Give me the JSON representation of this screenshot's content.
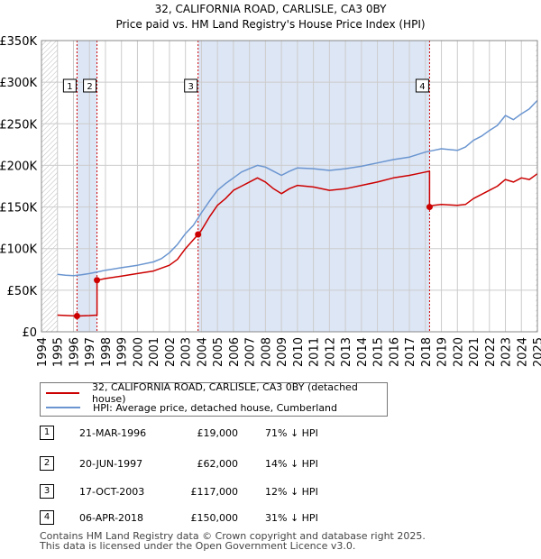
{
  "chart_data": {
    "type": "line",
    "title": "32, CALIFORNIA ROAD, CARLISLE, CA3 0BY",
    "subtitle": "Price paid vs. HM Land Registry's House Price Index (HPI)",
    "xlim": [
      1994,
      2025
    ],
    "ylim": [
      0,
      350000
    ],
    "y_ticks": [
      {
        "value": 0,
        "label": "£0"
      },
      {
        "value": 50000,
        "label": "£50K"
      },
      {
        "value": 100000,
        "label": "£100K"
      },
      {
        "value": 150000,
        "label": "£150K"
      },
      {
        "value": 200000,
        "label": "£200K"
      },
      {
        "value": 250000,
        "label": "£250K"
      },
      {
        "value": 300000,
        "label": "£300K"
      },
      {
        "value": 350000,
        "label": "£350K"
      }
    ],
    "x_ticks": [
      "1994",
      "1995",
      "1996",
      "1997",
      "1998",
      "1999",
      "2000",
      "2001",
      "2002",
      "2003",
      "2004",
      "2005",
      "2006",
      "2007",
      "2008",
      "2009",
      "2010",
      "2011",
      "2012",
      "2013",
      "2014",
      "2015",
      "2016",
      "2017",
      "2018",
      "2019",
      "2020",
      "2021",
      "2022",
      "2023",
      "2024",
      "2025"
    ],
    "colors": {
      "hpi": "#6a95d0",
      "property": "#cc0000",
      "shade": "#dde6f5",
      "grid": "#cccccc",
      "vline": "#cc0000"
    },
    "series": [
      {
        "name": "32, CALIFORNIA ROAD, CARLISLE, CA3 0BY (detached house)",
        "color": "#cc0000",
        "x": [
          1995.0,
          1996.22,
          1996.22,
          1997.0,
          1997.47,
          1997.47,
          1998.0,
          1999.0,
          2000.0,
          2001.0,
          2002.0,
          2002.5,
          2003.0,
          2003.79,
          2004.0,
          2004.5,
          2005.0,
          2005.5,
          2006.0,
          2006.5,
          2007.0,
          2007.5,
          2008.0,
          2008.5,
          2009.0,
          2009.5,
          2010.0,
          2011.0,
          2012.0,
          2013.0,
          2014.0,
          2015.0,
          2016.0,
          2017.0,
          2017.5,
          2018.0,
          2018.26,
          2018.26,
          2018.5,
          2019.0,
          2020.0,
          2020.5,
          2021.0,
          2021.5,
          2022.0,
          2022.5,
          2023.0,
          2023.5,
          2024.0,
          2024.5,
          2025.0
        ],
        "y": [
          20000,
          19000,
          19000,
          19500,
          20000,
          62000,
          64000,
          67000,
          70000,
          73000,
          80000,
          87000,
          100000,
          117000,
          122000,
          138000,
          152000,
          160000,
          170000,
          175000,
          180000,
          185000,
          180000,
          172000,
          166000,
          172000,
          176000,
          174000,
          170000,
          172000,
          176000,
          180000,
          185000,
          188000,
          190000,
          192000,
          193000,
          150000,
          152000,
          153000,
          152000,
          153000,
          160000,
          165000,
          170000,
          175000,
          183000,
          180000,
          185000,
          183000,
          190000
        ]
      },
      {
        "name": "HPI: Average price, detached house, Cumberland",
        "color": "#6a95d0",
        "x": [
          1995.0,
          1995.5,
          1996.0,
          1996.5,
          1997.0,
          1997.5,
          1998.0,
          1999.0,
          2000.0,
          2001.0,
          2001.5,
          2002.0,
          2002.5,
          2003.0,
          2003.5,
          2004.0,
          2004.5,
          2005.0,
          2005.5,
          2006.0,
          2006.5,
          2007.0,
          2007.5,
          2008.0,
          2008.5,
          2009.0,
          2009.5,
          2010.0,
          2011.0,
          2012.0,
          2013.0,
          2014.0,
          2015.0,
          2016.0,
          2017.0,
          2018.0,
          2018.5,
          2019.0,
          2020.0,
          2020.5,
          2021.0,
          2021.5,
          2022.0,
          2022.5,
          2023.0,
          2023.5,
          2024.0,
          2024.5,
          2025.0
        ],
        "y": [
          69000,
          68000,
          67500,
          68500,
          70000,
          72000,
          74000,
          77000,
          80000,
          84000,
          88000,
          95000,
          105000,
          118000,
          128000,
          143000,
          157000,
          170000,
          178000,
          185000,
          192000,
          196000,
          200000,
          198000,
          193000,
          188000,
          193000,
          197000,
          196000,
          194000,
          196000,
          199000,
          203000,
          207000,
          210000,
          216000,
          218000,
          220000,
          218000,
          222000,
          230000,
          235000,
          242000,
          248000,
          260000,
          255000,
          262000,
          268000,
          278000
        ]
      }
    ],
    "sales": [
      {
        "label": "1",
        "x": 1996.22,
        "y": 19000
      },
      {
        "label": "2",
        "x": 1997.47,
        "y": 62000
      },
      {
        "label": "3",
        "x": 2003.79,
        "y": 117000
      },
      {
        "label": "4",
        "x": 2018.26,
        "y": 150000
      }
    ],
    "shaded_spans": [
      [
        1996.22,
        1997.47
      ],
      [
        2003.79,
        2018.26
      ]
    ],
    "hatched_before": 1995.0,
    "hatched_after": 2024.9
  },
  "legend": {
    "property": "32, CALIFORNIA ROAD, CARLISLE, CA3 0BY (detached house)",
    "hpi": "HPI: Average price, detached house, Cumberland"
  },
  "transactions": [
    {
      "num": "1",
      "date": "21-MAR-1996",
      "price": "£19,000",
      "hpi": "71% ↓ HPI"
    },
    {
      "num": "2",
      "date": "20-JUN-1997",
      "price": "£62,000",
      "hpi": "14% ↓ HPI"
    },
    {
      "num": "3",
      "date": "17-OCT-2003",
      "price": "£117,000",
      "hpi": "12% ↓ HPI"
    },
    {
      "num": "4",
      "date": "06-APR-2018",
      "price": "£150,000",
      "hpi": "31% ↓ HPI"
    }
  ],
  "footer": {
    "line1": "Contains HM Land Registry data © Crown copyright and database right 2025.",
    "line2": "This data is licensed under the Open Government Licence v3.0."
  }
}
